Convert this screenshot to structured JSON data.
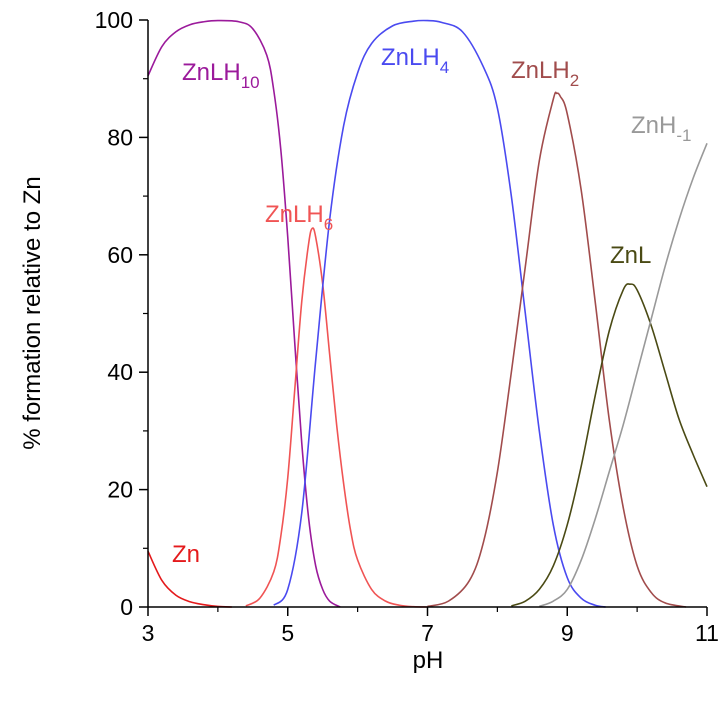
{
  "chart_data": {
    "type": "line",
    "title": "",
    "xlabel": "pH",
    "ylabel": "% formation relative to Zn",
    "xlim": [
      3,
      11
    ],
    "ylim": [
      0,
      100
    ],
    "xticks": [
      3,
      5,
      7,
      9,
      11
    ],
    "yticks": [
      0,
      20,
      40,
      60,
      80,
      100
    ],
    "xtick_labels": [
      "3",
      "5",
      "7",
      "9",
      "11"
    ],
    "ytick_labels": [
      "0",
      "20",
      "40",
      "60",
      "80",
      "100"
    ],
    "grid": false,
    "series": [
      {
        "name": "Zn",
        "label_main": "Zn",
        "label_sub": "",
        "color": "#e41a1c",
        "x": [
          3.0,
          3.2,
          3.4,
          3.6,
          3.8,
          4.0,
          4.2
        ],
        "y": [
          9.5,
          4.5,
          2.0,
          0.9,
          0.4,
          0.1,
          0.0
        ]
      },
      {
        "name": "ZnLH10",
        "label_main": "ZnLH",
        "label_sub": "10",
        "color": "#9b1a9b",
        "x": [
          3.0,
          3.2,
          3.4,
          3.6,
          3.8,
          4.0,
          4.3,
          4.5,
          4.7,
          4.8,
          4.9,
          5.0,
          5.1,
          5.2,
          5.3,
          5.4,
          5.5,
          5.6,
          5.75
        ],
        "y": [
          90.5,
          95.5,
          98.0,
          99.2,
          99.7,
          99.9,
          99.7,
          98.5,
          94,
          88,
          78,
          63,
          45,
          28,
          15,
          7,
          3,
          1,
          0
        ]
      },
      {
        "name": "ZnLH6",
        "label_main": "ZnLH",
        "label_sub": "6",
        "color": "#f05454",
        "x": [
          4.4,
          4.6,
          4.8,
          4.9,
          5.0,
          5.1,
          5.2,
          5.3,
          5.35,
          5.4,
          5.5,
          5.6,
          5.7,
          5.8,
          5.9,
          6.0,
          6.2,
          6.4,
          6.6,
          6.8,
          7.0
        ],
        "y": [
          0.2,
          1.5,
          6,
          12,
          22,
          37,
          52,
          62,
          64.5,
          63,
          55,
          43,
          31,
          21,
          13,
          8,
          3,
          1,
          0.3,
          0.05,
          0
        ]
      },
      {
        "name": "ZnLH4",
        "label_main": "ZnLH",
        "label_sub": "4",
        "color": "#4a4af0",
        "x": [
          4.8,
          5.0,
          5.2,
          5.4,
          5.6,
          5.8,
          6.0,
          6.2,
          6.5,
          6.8,
          7.0,
          7.2,
          7.5,
          7.8,
          8.0,
          8.2,
          8.4,
          8.6,
          8.8,
          9.0,
          9.2,
          9.4,
          9.55
        ],
        "y": [
          0.3,
          3,
          16,
          42,
          66,
          82,
          91,
          96,
          99,
          99.8,
          99.9,
          99.6,
          98,
          92,
          85,
          70,
          50,
          30,
          14,
          5,
          1.5,
          0.3,
          0
        ]
      },
      {
        "name": "ZnLH2",
        "label_main": "ZnLH",
        "label_sub": "2",
        "color": "#a14c4c",
        "x": [
          7.0,
          7.3,
          7.6,
          7.8,
          8.0,
          8.2,
          8.4,
          8.6,
          8.8,
          8.85,
          8.9,
          9.0,
          9.2,
          9.4,
          9.6,
          9.8,
          10.0,
          10.2,
          10.4,
          10.7
        ],
        "y": [
          0.1,
          1,
          4.5,
          11,
          23,
          40,
          58,
          76,
          86.5,
          87.5,
          87,
          84,
          71,
          52,
          32,
          17,
          7,
          2.5,
          0.7,
          0
        ]
      },
      {
        "name": "ZnL",
        "label_main": "ZnL",
        "label_sub": "",
        "color": "#4a4a14",
        "x": [
          8.2,
          8.4,
          8.6,
          8.8,
          9.0,
          9.2,
          9.4,
          9.6,
          9.8,
          9.9,
          10.0,
          10.2,
          10.4,
          10.6,
          10.8,
          11.0
        ],
        "y": [
          0.2,
          1.0,
          3,
          7,
          14,
          24,
          36,
          47,
          54,
          55,
          54,
          48,
          40,
          32,
          26,
          20.5
        ]
      },
      {
        "name": "ZnH-1",
        "label_main": "ZnH",
        "label_sub": "-1",
        "color": "#999999",
        "x": [
          8.6,
          8.8,
          9.0,
          9.2,
          9.4,
          9.6,
          9.8,
          10.0,
          10.2,
          10.4,
          10.6,
          10.8,
          11.0
        ],
        "y": [
          0.1,
          1,
          3,
          8,
          15,
          23,
          31,
          40,
          49,
          58,
          66,
          73,
          79
        ]
      }
    ]
  }
}
